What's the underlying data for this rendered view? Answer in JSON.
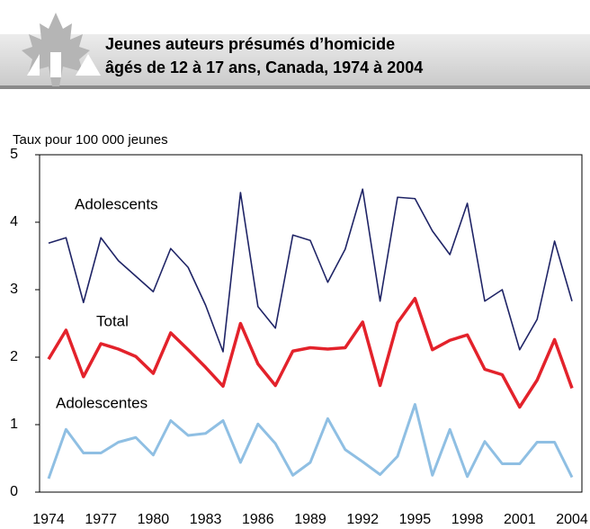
{
  "chart_data": {
    "type": "line",
    "title": [
      "Jeunes auteurs présumés d’homicide",
      "âgés de 12 à 17 ans, Canada, 1974 à 2004"
    ],
    "ylabel": "Taux pour 100 000 jeunes",
    "categories": [
      "1974",
      null,
      null,
      "1977",
      null,
      null,
      "1980",
      null,
      null,
      "1983",
      null,
      null,
      "1986",
      null,
      null,
      "1989",
      null,
      null,
      "1992",
      null,
      null,
      "1995",
      null,
      null,
      "1998",
      null,
      null,
      "2001",
      null,
      null,
      "2004"
    ],
    "ylim": [
      0,
      5
    ],
    "yticks": [
      0,
      1,
      2,
      3,
      4,
      5
    ],
    "series": [
      {
        "name": "Adolescents",
        "color": "#1f2466",
        "values": [
          3.69,
          3.77,
          2.81,
          3.77,
          3.43,
          3.2,
          2.97,
          3.61,
          3.33,
          2.77,
          2.08,
          4.44,
          2.75,
          2.43,
          3.81,
          3.73,
          3.11,
          3.6,
          4.49,
          2.83,
          4.37,
          4.35,
          3.87,
          3.52,
          4.28,
          2.83,
          3.0,
          2.11,
          2.56,
          3.72,
          2.83
        ]
      },
      {
        "name": "Total",
        "color": "#e3222b",
        "values": [
          1.97,
          2.4,
          1.71,
          2.2,
          2.12,
          2.01,
          1.76,
          2.36,
          2.11,
          1.85,
          1.57,
          2.5,
          1.9,
          1.58,
          2.09,
          2.14,
          2.12,
          2.14,
          2.52,
          1.58,
          2.51,
          2.87,
          2.11,
          2.25,
          2.33,
          1.82,
          1.74,
          1.26,
          1.66,
          2.26,
          1.54
        ]
      },
      {
        "name": "Adolescentes",
        "color": "#8fbfe3",
        "values": [
          0.2,
          0.93,
          0.58,
          0.58,
          0.74,
          0.81,
          0.55,
          1.06,
          0.84,
          0.87,
          1.06,
          0.44,
          1.01,
          0.72,
          0.25,
          0.44,
          1.09,
          0.63,
          0.45,
          0.26,
          0.53,
          1.3,
          0.25,
          0.93,
          0.23,
          0.75,
          0.42,
          0.42,
          0.74,
          0.74,
          0.22
        ]
      }
    ]
  }
}
